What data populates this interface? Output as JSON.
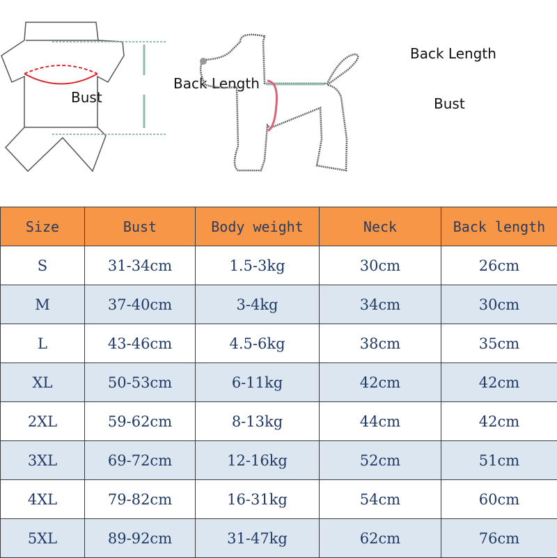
{
  "diagram": {
    "garment_labels": {
      "bust": "Bust",
      "back_length": "Back Length"
    },
    "dog_labels": {
      "bust": "Bust",
      "back_length": "Back Length"
    }
  },
  "table": {
    "headers": [
      "Size",
      "Bust",
      "Body weight",
      "Neck",
      "Back length"
    ],
    "rows": [
      [
        "S",
        "31-34cm",
        "1.5-3kg",
        "30cm",
        "26cm"
      ],
      [
        "M",
        "37-40cm",
        "3-4kg",
        "34cm",
        "30cm"
      ],
      [
        "L",
        "43-46cm",
        "4.5-6kg",
        "38cm",
        "35cm"
      ],
      [
        "XL",
        "50-53cm",
        "6-11kg",
        "42cm",
        "42cm"
      ],
      [
        "2XL",
        "59-62cm",
        "8-13kg",
        "44cm",
        "42cm"
      ],
      [
        "3XL",
        "69-72cm",
        "12-16kg",
        "52cm",
        "51cm"
      ],
      [
        "4XL",
        "79-82cm",
        "16-31kg",
        "54cm",
        "60cm"
      ],
      [
        "5XL",
        "89-92cm",
        "31-47kg",
        "62cm",
        "76cm"
      ]
    ]
  },
  "colors": {
    "header_bg": "#f79646",
    "alt_row_bg": "#dce6f1",
    "text": "#1f3864",
    "bust_line": "#d9262b",
    "measure_line": "#8fbfa8"
  }
}
